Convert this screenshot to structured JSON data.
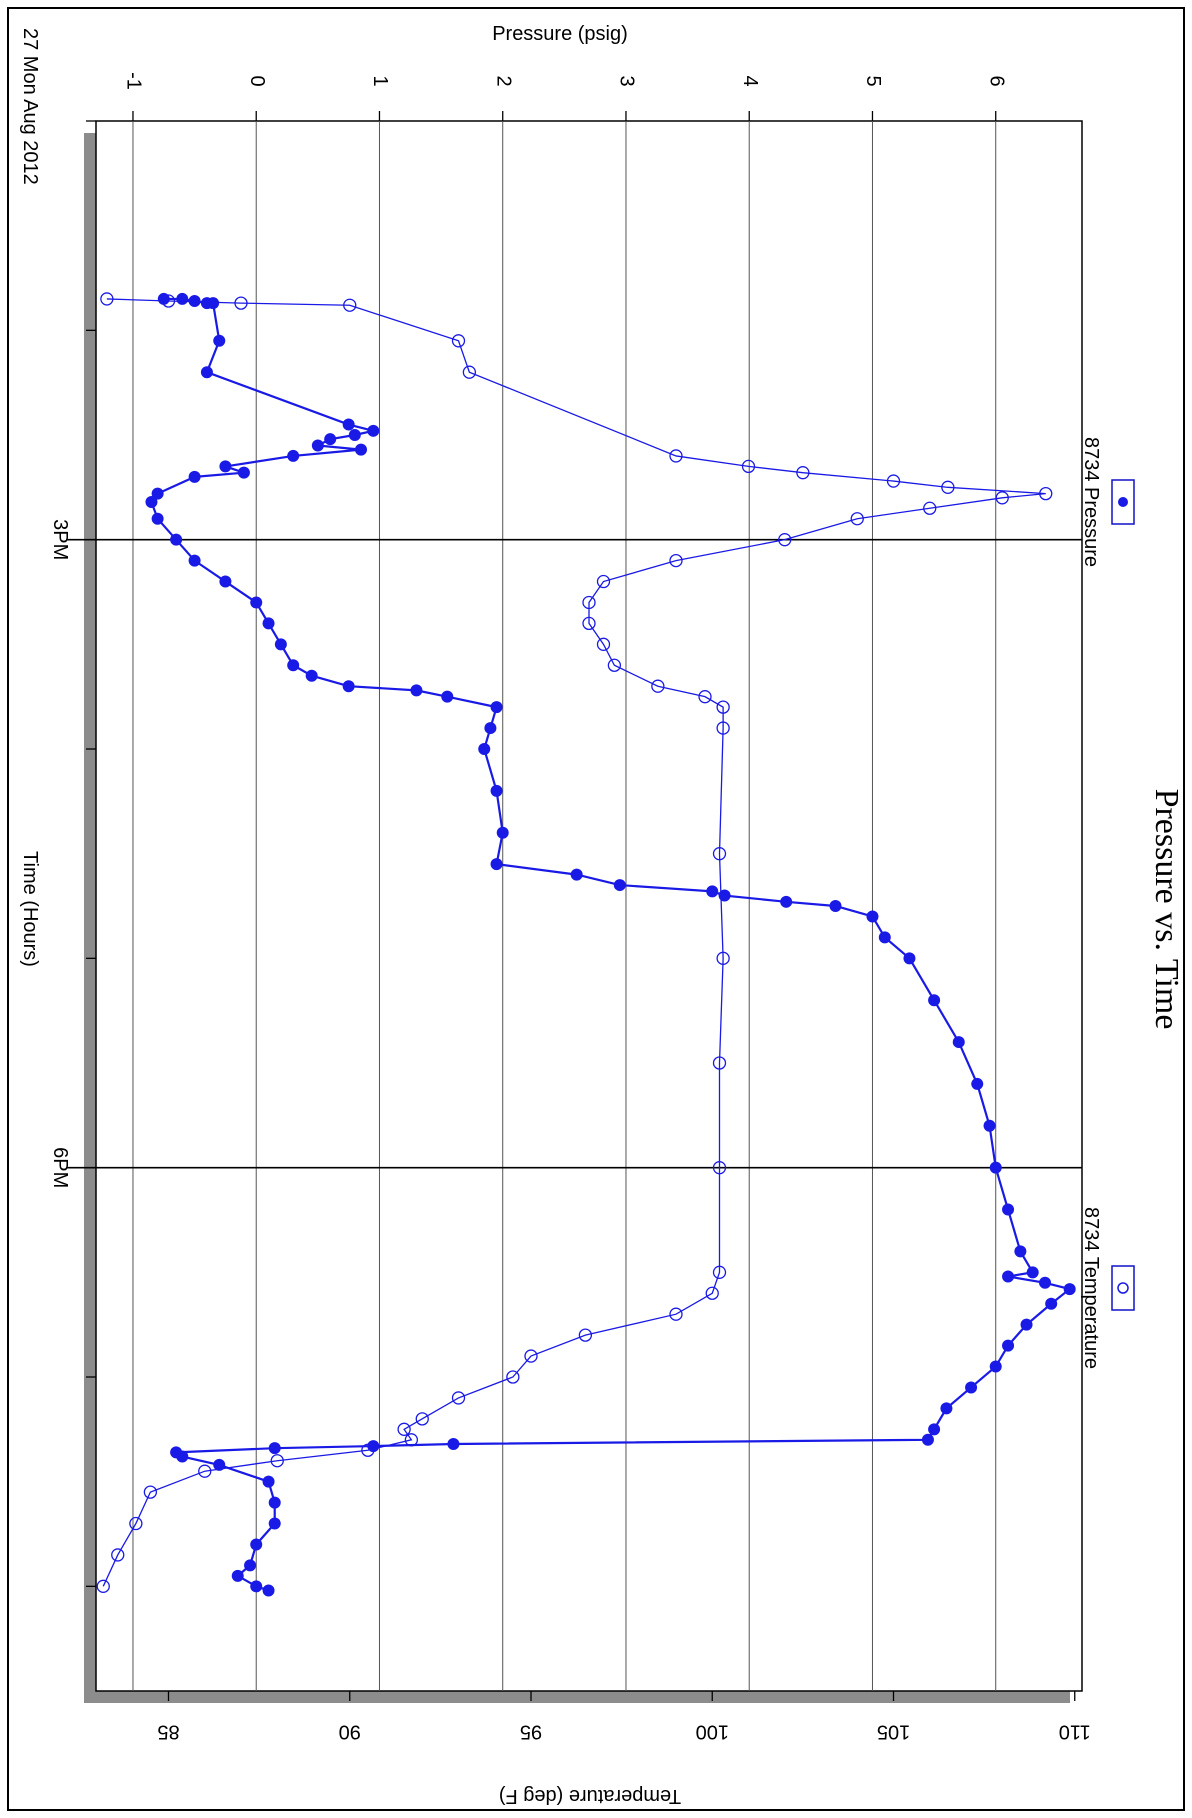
{
  "chart_data": {
    "type": "line",
    "title": "Pressure vs. Time",
    "date_label": "27 Mon Aug 2012",
    "xlabel": "Time (Hours)",
    "y_left_label": "Pressure (psig)",
    "y_right_label": "Temperature (deg F)",
    "x_ticks": [
      {
        "hour": 15,
        "label": "3PM"
      },
      {
        "hour": 18,
        "label": "6PM"
      }
    ],
    "xlim": [
      13.0,
      20.5
    ],
    "y_left_ticks": [
      "-1",
      "0",
      "1",
      "2",
      "3",
      "4",
      "5",
      "6"
    ],
    "y_left_lim": [
      -1.3,
      6.7
    ],
    "y_right_ticks": [
      "85",
      "90",
      "95",
      "100",
      "105",
      "110"
    ],
    "y_right_lim": [
      83.0,
      110.2
    ],
    "grid": true,
    "colors": {
      "series": "#1a1ae6",
      "shadow": "#8c8c8c"
    },
    "legend_placement": "top",
    "series": [
      {
        "name": "8734 Pressure",
        "axis": "left",
        "marker": "filled-circle",
        "points": [
          [
            13.85,
            -0.75
          ],
          [
            13.85,
            -0.6
          ],
          [
            13.86,
            -0.5
          ],
          [
            13.87,
            -0.4
          ],
          [
            13.87,
            -0.35
          ],
          [
            14.05,
            -0.3
          ],
          [
            14.2,
            -0.4
          ],
          [
            14.45,
            0.75
          ],
          [
            14.48,
            0.95
          ],
          [
            14.5,
            0.8
          ],
          [
            14.52,
            0.6
          ],
          [
            14.55,
            0.5
          ],
          [
            14.57,
            0.85
          ],
          [
            14.6,
            0.3
          ],
          [
            14.65,
            -0.25
          ],
          [
            14.68,
            -0.1
          ],
          [
            14.7,
            -0.5
          ],
          [
            14.78,
            -0.8
          ],
          [
            14.82,
            -0.85
          ],
          [
            14.9,
            -0.8
          ],
          [
            15.0,
            -0.65
          ],
          [
            15.1,
            -0.5
          ],
          [
            15.2,
            -0.25
          ],
          [
            15.3,
            0.0
          ],
          [
            15.4,
            0.1
          ],
          [
            15.5,
            0.2
          ],
          [
            15.6,
            0.3
          ],
          [
            15.65,
            0.45
          ],
          [
            15.7,
            0.75
          ],
          [
            15.72,
            1.3
          ],
          [
            15.75,
            1.55
          ],
          [
            15.8,
            1.95
          ],
          [
            15.9,
            1.9
          ],
          [
            16.0,
            1.85
          ],
          [
            16.2,
            1.95
          ],
          [
            16.4,
            2.0
          ],
          [
            16.55,
            1.95
          ],
          [
            16.6,
            2.6
          ],
          [
            16.65,
            2.95
          ],
          [
            16.68,
            3.7
          ],
          [
            16.7,
            3.8
          ],
          [
            16.73,
            4.3
          ],
          [
            16.75,
            4.7
          ],
          [
            16.8,
            5.0
          ],
          [
            16.9,
            5.1
          ],
          [
            17.0,
            5.3
          ],
          [
            17.2,
            5.5
          ],
          [
            17.4,
            5.7
          ],
          [
            17.6,
            5.85
          ],
          [
            17.8,
            5.95
          ],
          [
            18.0,
            6.0
          ],
          [
            18.2,
            6.1
          ],
          [
            18.4,
            6.2
          ],
          [
            18.5,
            6.3
          ],
          [
            18.52,
            6.1
          ],
          [
            18.55,
            6.4
          ],
          [
            18.58,
            6.6
          ],
          [
            18.65,
            6.45
          ],
          [
            18.75,
            6.25
          ],
          [
            18.85,
            6.1
          ],
          [
            18.95,
            6.0
          ],
          [
            19.05,
            5.8
          ],
          [
            19.15,
            5.6
          ],
          [
            19.25,
            5.5
          ],
          [
            19.3,
            5.45
          ],
          [
            19.32,
            1.6
          ],
          [
            19.33,
            0.95
          ],
          [
            19.34,
            0.15
          ],
          [
            19.36,
            -0.65
          ],
          [
            19.38,
            -0.6
          ],
          [
            19.42,
            -0.3
          ],
          [
            19.5,
            0.1
          ],
          [
            19.6,
            0.15
          ],
          [
            19.7,
            0.15
          ],
          [
            19.8,
            0.0
          ],
          [
            19.9,
            -0.05
          ],
          [
            19.95,
            -0.15
          ],
          [
            20.0,
            0.0
          ],
          [
            20.02,
            0.1
          ]
        ]
      },
      {
        "name": "8734 Temperature",
        "axis": "right",
        "marker": "open-circle",
        "points": [
          [
            13.85,
            83.3
          ],
          [
            13.86,
            85.0
          ],
          [
            13.87,
            87.0
          ],
          [
            13.88,
            90.0
          ],
          [
            14.05,
            93.0
          ],
          [
            14.2,
            93.3
          ],
          [
            14.6,
            99.0
          ],
          [
            14.65,
            101.0
          ],
          [
            14.68,
            102.5
          ],
          [
            14.72,
            105.0
          ],
          [
            14.75,
            106.5
          ],
          [
            14.78,
            109.2
          ],
          [
            14.8,
            108.0
          ],
          [
            14.85,
            106.0
          ],
          [
            14.9,
            104.0
          ],
          [
            15.0,
            102.0
          ],
          [
            15.1,
            99.0
          ],
          [
            15.2,
            97.0
          ],
          [
            15.3,
            96.6
          ],
          [
            15.4,
            96.6
          ],
          [
            15.5,
            97.0
          ],
          [
            15.6,
            97.3
          ],
          [
            15.7,
            98.5
          ],
          [
            15.75,
            99.8
          ],
          [
            15.8,
            100.3
          ],
          [
            15.9,
            100.3
          ],
          [
            16.5,
            100.2
          ],
          [
            17.0,
            100.3
          ],
          [
            17.5,
            100.2
          ],
          [
            18.0,
            100.2
          ],
          [
            18.5,
            100.2
          ],
          [
            18.6,
            100.0
          ],
          [
            18.7,
            99.0
          ],
          [
            18.8,
            96.5
          ],
          [
            18.9,
            95.0
          ],
          [
            19.0,
            94.5
          ],
          [
            19.1,
            93.0
          ],
          [
            19.2,
            92.0
          ],
          [
            19.25,
            91.5
          ],
          [
            19.3,
            91.7
          ],
          [
            19.35,
            90.5
          ],
          [
            19.4,
            88.0
          ],
          [
            19.45,
            86.0
          ],
          [
            19.55,
            84.5
          ],
          [
            19.7,
            84.1
          ],
          [
            19.85,
            83.6
          ],
          [
            20.0,
            83.2
          ]
        ]
      }
    ]
  }
}
